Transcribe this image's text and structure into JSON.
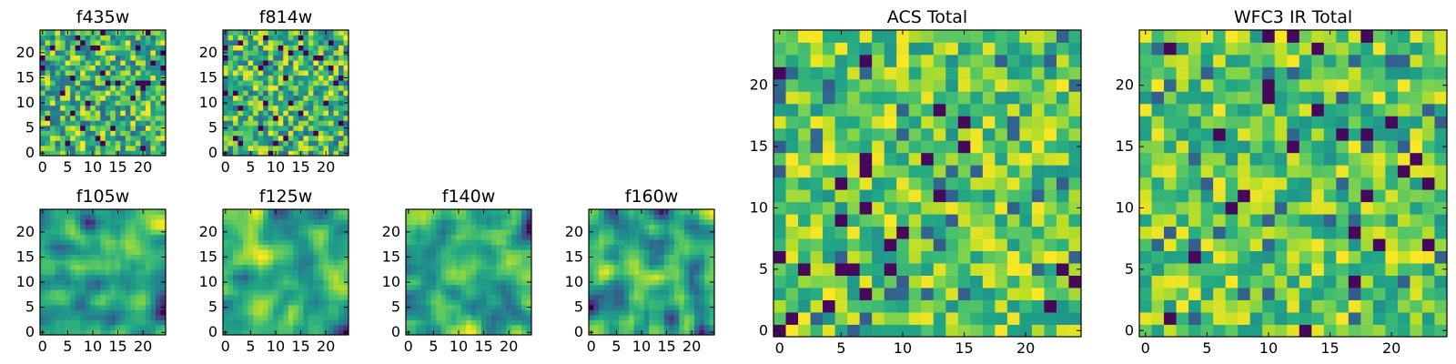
{
  "figure": {
    "description_colormap": "viridis"
  },
  "chart_data": [
    {
      "id": "f435w",
      "type": "heatmap",
      "title": "f435w",
      "size": [
        25,
        25
      ],
      "xticks": [
        "0",
        "5",
        "10",
        "15",
        "20"
      ],
      "yticks": [
        "0",
        "5",
        "10",
        "15",
        "20"
      ],
      "seed": 11,
      "style": "noise"
    },
    {
      "id": "f814w",
      "type": "heatmap",
      "title": "f814w",
      "size": [
        25,
        25
      ],
      "xticks": [
        "0",
        "5",
        "10",
        "15",
        "20"
      ],
      "yticks": [
        "0",
        "5",
        "10",
        "15",
        "20"
      ],
      "seed": 23,
      "style": "noise"
    },
    {
      "id": "f105w",
      "type": "heatmap",
      "title": "f105w",
      "size": [
        25,
        25
      ],
      "xticks": [
        "0",
        "5",
        "10",
        "15",
        "20"
      ],
      "yticks": [
        "0",
        "5",
        "10",
        "15",
        "20"
      ],
      "seed": 37,
      "style": "smooth"
    },
    {
      "id": "f125w",
      "type": "heatmap",
      "title": "f125w",
      "size": [
        25,
        25
      ],
      "xticks": [
        "0",
        "5",
        "10",
        "15",
        "20"
      ],
      "yticks": [
        "0",
        "5",
        "10",
        "15",
        "20"
      ],
      "seed": 41,
      "style": "smooth"
    },
    {
      "id": "f140w",
      "type": "heatmap",
      "title": "f140w",
      "size": [
        25,
        25
      ],
      "xticks": [
        "0",
        "5",
        "10",
        "15",
        "20"
      ],
      "yticks": [
        "0",
        "5",
        "10",
        "15",
        "20"
      ],
      "seed": 53,
      "style": "smooth"
    },
    {
      "id": "f160w",
      "type": "heatmap",
      "title": "f160w",
      "size": [
        25,
        25
      ],
      "xticks": [
        "0",
        "5",
        "10",
        "15",
        "20"
      ],
      "yticks": [
        "0",
        "5",
        "10",
        "15",
        "20"
      ],
      "seed": 67,
      "style": "smooth"
    },
    {
      "id": "acs-total",
      "type": "heatmap",
      "title": "ACS Total",
      "size": [
        25,
        25
      ],
      "xticks": [
        "0",
        "5",
        "10",
        "15",
        "20"
      ],
      "yticks": [
        "0",
        "5",
        "10",
        "15",
        "20"
      ],
      "seed": 79,
      "style": "blocky"
    },
    {
      "id": "wfc3-ir-total",
      "type": "heatmap",
      "title": "WFC3 IR Total",
      "size": [
        25,
        25
      ],
      "xticks": [
        "0",
        "5",
        "10",
        "15",
        "20"
      ],
      "yticks": [
        "0",
        "5",
        "10",
        "15",
        "20"
      ],
      "seed": 97,
      "style": "blocky"
    }
  ]
}
